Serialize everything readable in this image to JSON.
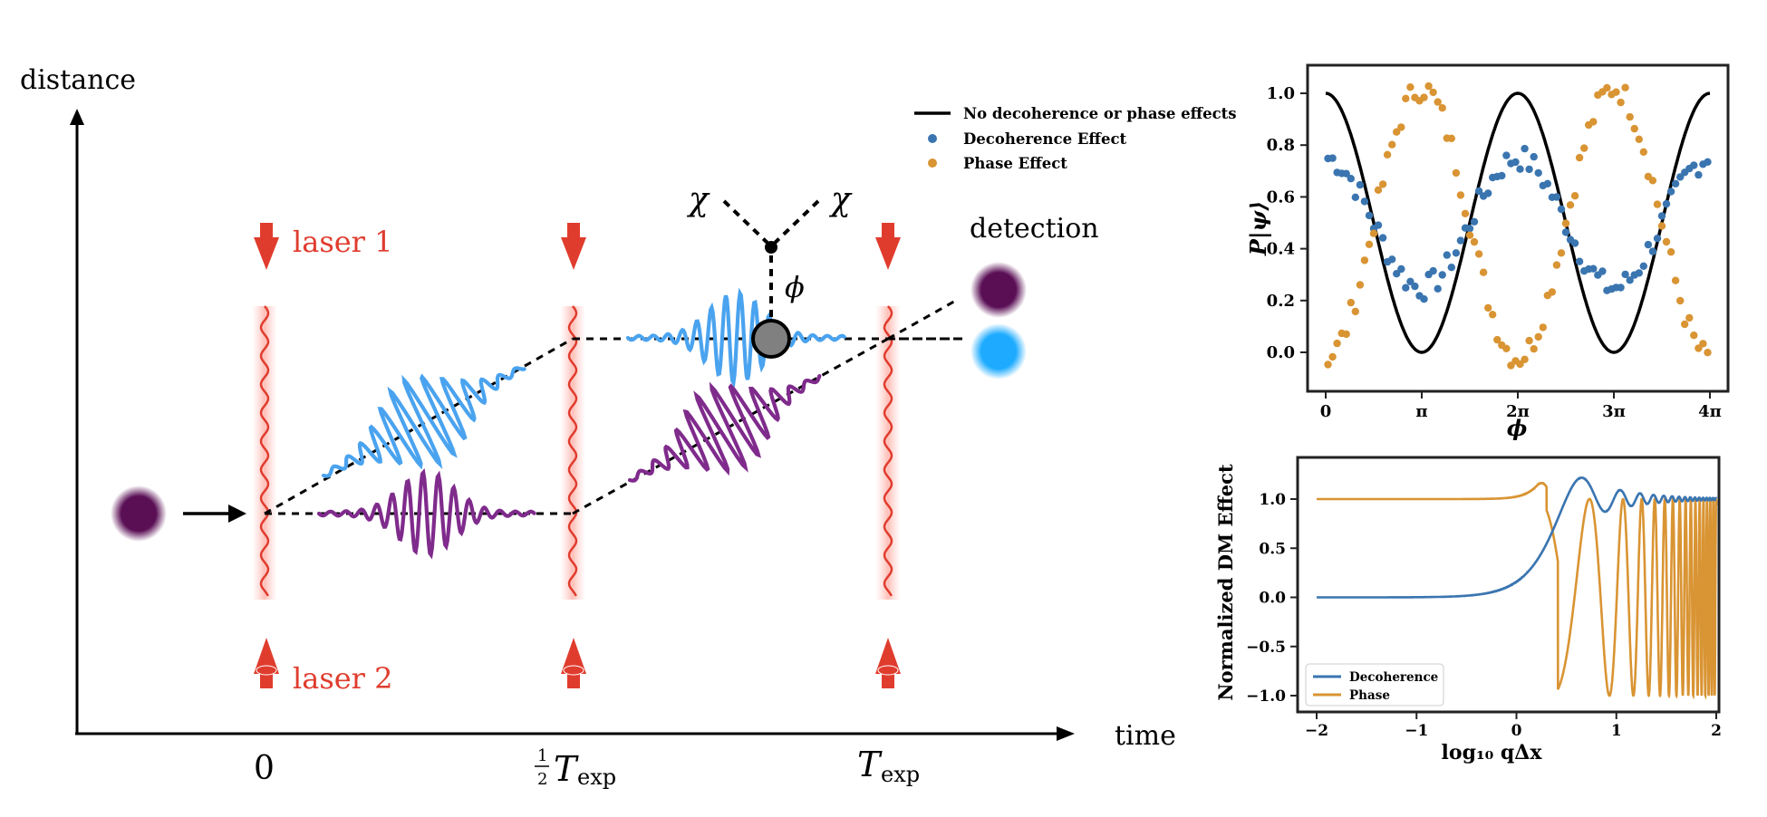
{
  "diagram": {
    "axis_y_label": "distance",
    "axis_x_label": "time",
    "time_labels": {
      "t0": "0",
      "half_frac_num": "1",
      "half_frac_den": "2",
      "half_T": "T",
      "half_T_sub": "exp",
      "full_T": "T",
      "full_T_sub": "exp"
    },
    "laser_labels": [
      "laser 1",
      "laser 2"
    ],
    "detection_label": "detection",
    "chi_labels": [
      "χ",
      "χ"
    ],
    "phi_label": "ϕ",
    "colors": {
      "laser": "#e03c2e",
      "blue_packet": "#4aa3ef",
      "purple_packet": "#7f2b8c",
      "atom_purple": "#5a0f55",
      "atom_blue": "#1eabff",
      "scatter_center": "#808080"
    },
    "legend": {
      "line": "No decoherence or phase effects",
      "decoherence": "Decoherence Effect",
      "phase": "Phase Effect"
    }
  },
  "chart_data": [
    {
      "type": "scatter",
      "ylabel": "P|ψ⟩",
      "xlabel": "ϕ",
      "xticks": [
        "0",
        "π",
        "2π",
        "3π",
        "4π"
      ],
      "yticks": [
        "0.0",
        "0.2",
        "0.4",
        "0.6",
        "0.8",
        "1.0"
      ],
      "xlim": [
        -0.2,
        12.9
      ],
      "ylim": [
        -0.12,
        1.12
      ],
      "legend_placement": "top-left, outside",
      "series": [
        {
          "name": "No decoherence or phase effects",
          "kind": "line",
          "color": "#000000",
          "function": "0.5 + 0.5*cos(x)",
          "x_range": [
            0,
            12.566
          ]
        },
        {
          "name": "Decoherence Effect",
          "kind": "points",
          "color": "#3a75b0",
          "model": "0.5 + 0.25*cos(x) with noise",
          "n": 84
        },
        {
          "name": "Phase Effect",
          "kind": "points",
          "color": "#d99433",
          "model": "0.5 + 0.5*cos(x - π) with noise",
          "n": 84
        }
      ]
    },
    {
      "type": "line",
      "ylabel": "Normalized DM Effect",
      "xlabel": "log₁₀ qΔx",
      "xticks": [
        "−2",
        "−1",
        "0",
        "1",
        "2"
      ],
      "yticks": [
        "−1.0",
        "−0.5",
        "0.0",
        "0.5",
        "1.0"
      ],
      "xlim": [
        -2.2,
        2.0
      ],
      "ylim": [
        -1.12,
        1.42
      ],
      "legend_placement": "bottom-left",
      "series": [
        {
          "name": "Decoherence",
          "color": "#3a75b0",
          "function": "1 - sin(z)/z, z = 10^x",
          "x_range": [
            -2,
            2
          ]
        },
        {
          "name": "Phase",
          "color": "#d99433",
          "function": "sin(z)/z - ... oscillating (cos-based)",
          "x_range": [
            -2,
            2
          ]
        }
      ]
    }
  ]
}
